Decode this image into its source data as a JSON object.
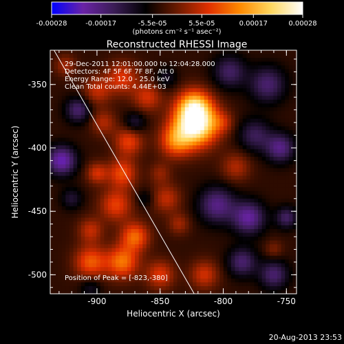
{
  "chart_data": {
    "type": "heatmap",
    "title": "Reconstructed RHESSI Image",
    "xlabel": "Heliocentric X (arcsec)",
    "ylabel": "Heliocentric Y (arcsec)",
    "xlim": [
      -937,
      -742
    ],
    "ylim": [
      -515,
      -323
    ],
    "xticks": [
      -900,
      -850,
      -800,
      -750
    ],
    "xtick_labels": [
      "-900",
      "-850",
      "-800",
      "-750"
    ],
    "yticks": [
      -350,
      -400,
      -450,
      -500
    ],
    "ytick_labels": [
      "-350",
      "-400",
      "-450",
      "-500"
    ],
    "colorbar": {
      "range": [
        -0.00028,
        0.00028
      ],
      "ticks": [
        -0.00028,
        -0.00017,
        -5.5e-05,
        5.5e-05,
        0.00017,
        0.00028
      ],
      "tick_labels": [
        "-0.00028",
        "-0.00017",
        "-5.5e-05",
        "5.5e-05",
        "0.00017",
        "0.00028"
      ],
      "unit_label": "(photons cm⁻² s⁻¹ asec⁻²)",
      "stops": [
        "#0000ff",
        "#6a23a6",
        "#3a1d55",
        "#000000",
        "#6a1a00",
        "#e03000",
        "#ff8a00",
        "#ffd860",
        "#ffffff"
      ]
    },
    "info_lines": [
      "29-Dec-2011 12:01:00.000 to 12:04:28.000",
      "Detectors: 4F 5F 6F 7F 8F, Att 0",
      "Energy Range: 12.0 - 25.0 keV",
      "Clean     Total counts: 4.44E+03"
    ],
    "peak_label": "Position of Peak = [-823,-380]",
    "peak": [
      -823,
      -380
    ],
    "limb_line": [
      [
        -934,
        -323
      ],
      [
        -823,
        -515
      ]
    ],
    "blobs": [
      {
        "x": -822,
        "y": -381,
        "r": 12,
        "v": 0.00034
      },
      {
        "x": -823,
        "y": -366,
        "r": 9,
        "v": 0.00016
      },
      {
        "x": -838,
        "y": -395,
        "r": 9,
        "v": 0.00014
      },
      {
        "x": -880,
        "y": -345,
        "r": 9,
        "v": 0.00011
      },
      {
        "x": -860,
        "y": -360,
        "r": 8,
        "v": 0.0001
      },
      {
        "x": -900,
        "y": -355,
        "r": 8,
        "v": 9e-05
      },
      {
        "x": -895,
        "y": -380,
        "r": 7,
        "v": 8e-05
      },
      {
        "x": -875,
        "y": -395,
        "r": 8,
        "v": 0.00012
      },
      {
        "x": -880,
        "y": -420,
        "r": 8,
        "v": 0.00013
      },
      {
        "x": -900,
        "y": -420,
        "r": 6,
        "v": 0.0001
      },
      {
        "x": -885,
        "y": -445,
        "r": 9,
        "v": 0.00012
      },
      {
        "x": -870,
        "y": -470,
        "r": 8,
        "v": 0.00015
      },
      {
        "x": -880,
        "y": -490,
        "r": 9,
        "v": 0.00016
      },
      {
        "x": -905,
        "y": -490,
        "r": 9,
        "v": 0.00014
      },
      {
        "x": -905,
        "y": -465,
        "r": 7,
        "v": 9e-05
      },
      {
        "x": -850,
        "y": -500,
        "r": 8,
        "v": 0.00011
      },
      {
        "x": -845,
        "y": -440,
        "r": 8,
        "v": 9e-05
      },
      {
        "x": -835,
        "y": -460,
        "r": 6,
        "v": 7e-05
      },
      {
        "x": -815,
        "y": -500,
        "r": 8,
        "v": 0.0001
      },
      {
        "x": -790,
        "y": -415,
        "r": 8,
        "v": 8e-05
      },
      {
        "x": -800,
        "y": -380,
        "r": 6,
        "v": 6e-05
      },
      {
        "x": -850,
        "y": -420,
        "r": 6,
        "v": 6e-05
      },
      {
        "x": -925,
        "y": -335,
        "r": 6,
        "v": 7e-05
      },
      {
        "x": -760,
        "y": -480,
        "r": 5,
        "v": 5e-05
      },
      {
        "x": -915,
        "y": -370,
        "r": 7,
        "v": -0.00012
      },
      {
        "x": -928,
        "y": -410,
        "r": 8,
        "v": -0.00018
      },
      {
        "x": -870,
        "y": -380,
        "r": 6,
        "v": -8e-05
      },
      {
        "x": -845,
        "y": -345,
        "r": 6,
        "v": -6e-05
      },
      {
        "x": -795,
        "y": -340,
        "r": 9,
        "v": -0.00011
      },
      {
        "x": -765,
        "y": -350,
        "r": 10,
        "v": -0.00012
      },
      {
        "x": -775,
        "y": -390,
        "r": 9,
        "v": -0.0001
      },
      {
        "x": -755,
        "y": -400,
        "r": 8,
        "v": -0.00014
      },
      {
        "x": -805,
        "y": -445,
        "r": 10,
        "v": -0.00014
      },
      {
        "x": -780,
        "y": -455,
        "r": 9,
        "v": -0.00016
      },
      {
        "x": -785,
        "y": -490,
        "r": 8,
        "v": -0.00012
      },
      {
        "x": -760,
        "y": -500,
        "r": 8,
        "v": -0.00012
      },
      {
        "x": -750,
        "y": -455,
        "r": 6,
        "v": -0.00011
      },
      {
        "x": -920,
        "y": -440,
        "r": 6,
        "v": -7e-05
      },
      {
        "x": -862,
        "y": -440,
        "r": 5,
        "v": -5e-05
      },
      {
        "x": -905,
        "y": -510,
        "r": 6,
        "v": -6e-05
      }
    ]
  },
  "footer": {
    "timestamp": "20-Aug-2013 23:53"
  }
}
